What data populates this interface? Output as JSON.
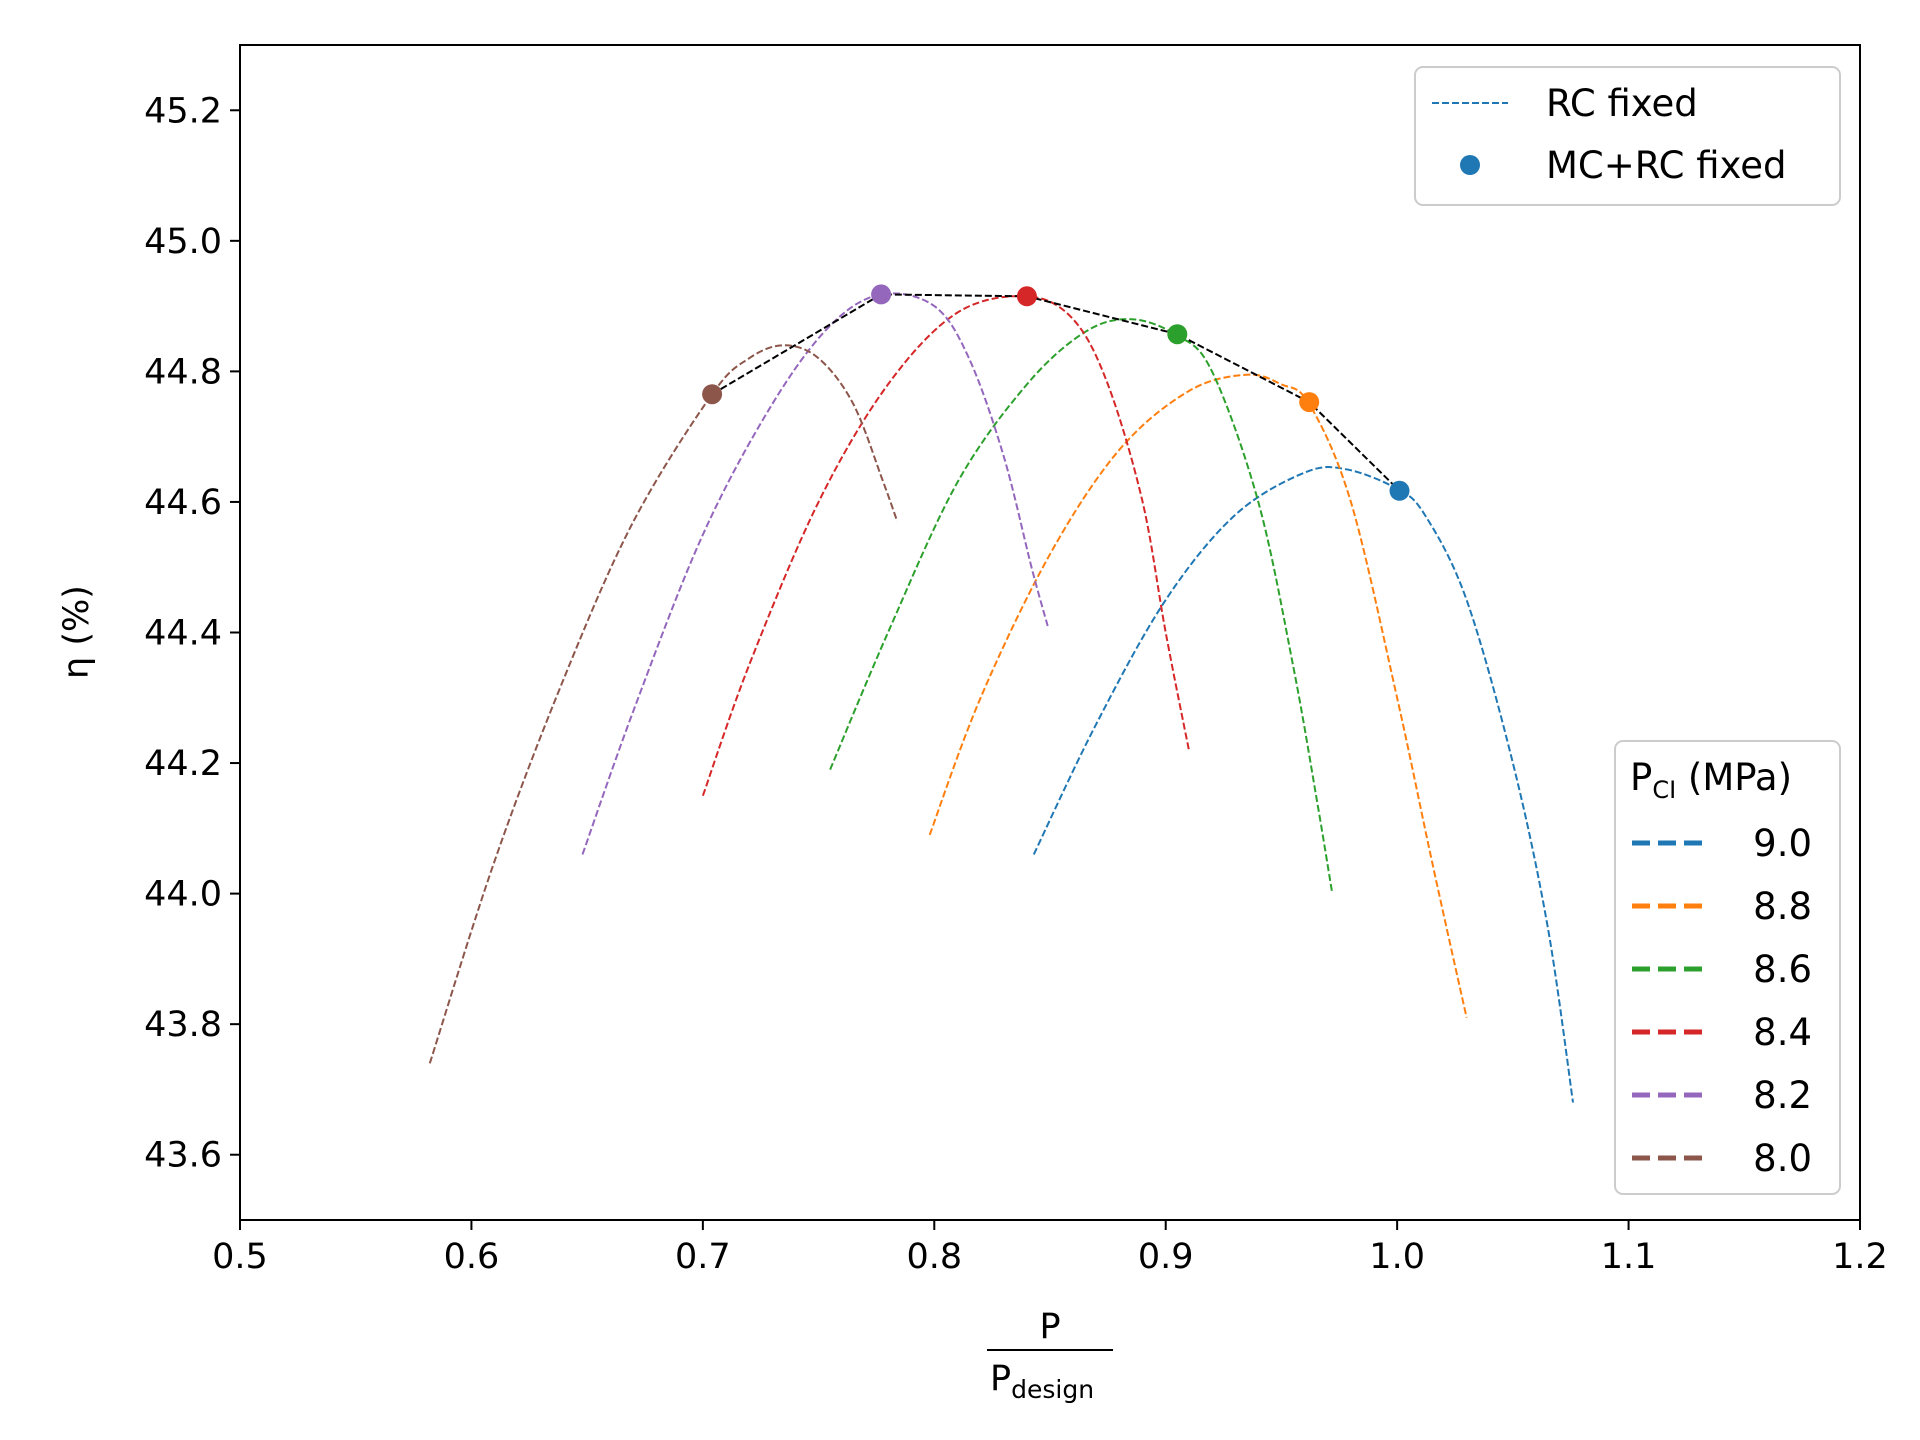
{
  "chart_data": {
    "type": "line",
    "xlabel_numerator": "P",
    "xlabel_denominator_main": "P",
    "xlabel_denominator_sub": "design",
    "ylabel": "η (%)",
    "xlim": [
      0.5,
      1.2
    ],
    "ylim": [
      43.5,
      45.3
    ],
    "x_ticks": [
      "0.5",
      "0.6",
      "0.7",
      "0.8",
      "0.9",
      "1.0",
      "1.1",
      "1.2"
    ],
    "y_ticks": [
      "43.6",
      "43.8",
      "44.0",
      "44.2",
      "44.4",
      "44.6",
      "44.8",
      "45.0",
      "45.2"
    ],
    "grid": false,
    "legend_top": {
      "placement": "top-right",
      "entries": [
        {
          "label": "RC fixed",
          "style": "dashed-line",
          "color": "#1f77b4"
        },
        {
          "label": "MC+RC fixed",
          "style": "marker",
          "color": "#1f77b4"
        }
      ]
    },
    "legend_bottom": {
      "placement": "bottom-right",
      "title_main": "P",
      "title_sub": "CI",
      "title_rest": " (MPa)",
      "entries": [
        {
          "label": "9.0",
          "color": "#1f77b4"
        },
        {
          "label": "8.8",
          "color": "#ff7f0e"
        },
        {
          "label": "8.6",
          "color": "#2ca02c"
        },
        {
          "label": "8.4",
          "color": "#d62728"
        },
        {
          "label": "8.2",
          "color": "#9467bd"
        },
        {
          "label": "8.0",
          "color": "#8c564b"
        }
      ]
    },
    "series": [
      {
        "name": "9.0",
        "color": "#1f77b4",
        "x": [
          0.843,
          0.87,
          0.9,
          0.93,
          0.96,
          0.978,
          1.0,
          1.012,
          1.03,
          1.05,
          1.065,
          1.076
        ],
        "y": [
          44.06,
          44.26,
          44.45,
          44.58,
          44.645,
          44.65,
          44.62,
          44.58,
          44.45,
          44.2,
          43.95,
          43.68
        ]
      },
      {
        "name": "8.8",
        "color": "#ff7f0e",
        "x": [
          0.798,
          0.82,
          0.85,
          0.88,
          0.91,
          0.935,
          0.95,
          0.962,
          0.98,
          1.0,
          1.015,
          1.03
        ],
        "y": [
          44.09,
          44.3,
          44.52,
          44.68,
          44.77,
          44.795,
          44.78,
          44.75,
          44.6,
          44.3,
          44.05,
          43.81
        ]
      },
      {
        "name": "8.6",
        "color": "#2ca02c",
        "x": [
          0.755,
          0.78,
          0.81,
          0.84,
          0.865,
          0.885,
          0.905,
          0.92,
          0.94,
          0.955,
          0.965,
          0.972
        ],
        "y": [
          44.19,
          44.4,
          44.63,
          44.78,
          44.86,
          44.88,
          44.855,
          44.8,
          44.6,
          44.35,
          44.15,
          44.0
        ]
      },
      {
        "name": "8.4",
        "color": "#d62728",
        "x": [
          0.7,
          0.72,
          0.75,
          0.78,
          0.81,
          0.84,
          0.86,
          0.875,
          0.89,
          0.9,
          0.91
        ],
        "y": [
          44.15,
          44.35,
          44.6,
          44.78,
          44.89,
          44.915,
          44.88,
          44.78,
          44.6,
          44.4,
          44.22
        ]
      },
      {
        "name": "8.2",
        "color": "#9467bd",
        "x": [
          0.648,
          0.67,
          0.7,
          0.73,
          0.755,
          0.777,
          0.8,
          0.815,
          0.83,
          0.842,
          0.849
        ],
        "y": [
          44.06,
          44.28,
          44.55,
          44.75,
          44.87,
          44.918,
          44.9,
          44.82,
          44.67,
          44.5,
          44.41
        ]
      },
      {
        "name": "8.0",
        "color": "#8c564b",
        "x": [
          0.582,
          0.61,
          0.64,
          0.67,
          0.704,
          0.72,
          0.735,
          0.75,
          0.765,
          0.778,
          0.784
        ],
        "y": [
          43.74,
          44.05,
          44.33,
          44.57,
          44.765,
          44.82,
          44.84,
          44.82,
          44.75,
          44.63,
          44.57
        ]
      }
    ],
    "optimum": {
      "color": "#000000",
      "points": [
        {
          "x": 0.704,
          "y": 44.765,
          "color": "#8c564b"
        },
        {
          "x": 0.777,
          "y": 44.918,
          "color": "#9467bd"
        },
        {
          "x": 0.84,
          "y": 44.915,
          "color": "#d62728"
        },
        {
          "x": 0.905,
          "y": 44.857,
          "color": "#2ca02c"
        },
        {
          "x": 0.962,
          "y": 44.753,
          "color": "#ff7f0e"
        },
        {
          "x": 1.001,
          "y": 44.617,
          "color": "#1f77b4"
        }
      ]
    }
  }
}
